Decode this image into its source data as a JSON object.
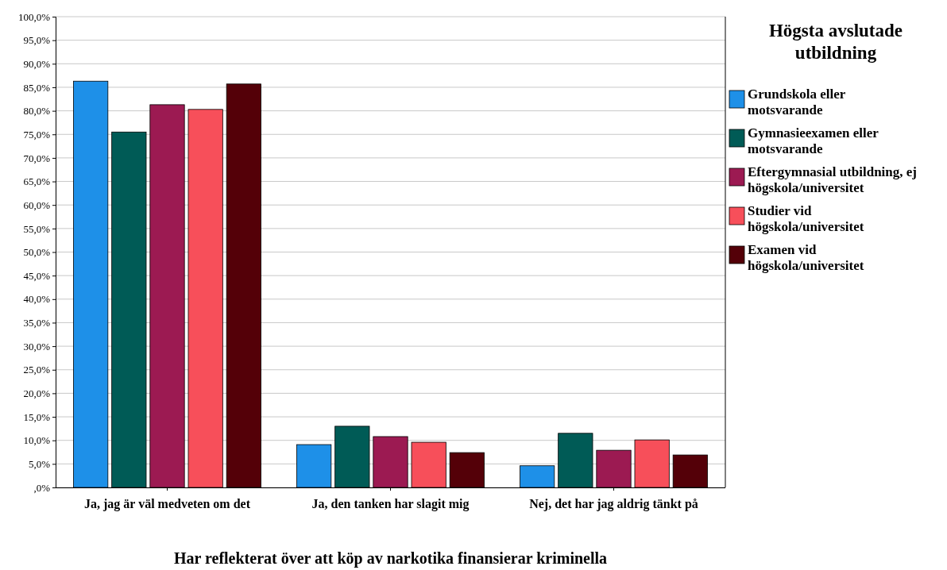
{
  "chart_data": {
    "type": "bar",
    "xlabel": "Har reflekterat över att köp av narkotika finansierar kriminella",
    "legend_title": "Högsta avslutade utbildning",
    "categories": [
      "Ja, jag är väl medveten om det",
      "Ja, den tanken har slagit mig",
      "Nej, det har jag aldrig tänkt på"
    ],
    "series": [
      {
        "name": "Grundskola eller motsvarande",
        "color": "#1e90e8",
        "values": [
          86.3,
          9.1,
          4.6
        ]
      },
      {
        "name": "Gymnasieexamen eller motsvarande",
        "color": "#005b56",
        "values": [
          75.5,
          13.0,
          11.5
        ]
      },
      {
        "name": "Eftergymnasial utbildning, ej högskola/universitet",
        "color": "#9c1a52",
        "values": [
          81.3,
          10.8,
          7.9
        ]
      },
      {
        "name": "Studier vid högskola/universitet",
        "color": "#f74f5a",
        "values": [
          80.3,
          9.6,
          10.1
        ]
      },
      {
        "name": "Examen vid högskola/universitet",
        "color": "#540008",
        "values": [
          85.7,
          7.4,
          6.9
        ]
      }
    ],
    "ylim": [
      0,
      100
    ],
    "yticks": [
      {
        "value": 0,
        "label": ",0%"
      },
      {
        "value": 5,
        "label": "5,0%"
      },
      {
        "value": 10,
        "label": "10,0%"
      },
      {
        "value": 15,
        "label": "15,0%"
      },
      {
        "value": 20,
        "label": "20,0%"
      },
      {
        "value": 25,
        "label": "25,0%"
      },
      {
        "value": 30,
        "label": "30,0%"
      },
      {
        "value": 35,
        "label": "35,0%"
      },
      {
        "value": 40,
        "label": "40,0%"
      },
      {
        "value": 45,
        "label": "45,0%"
      },
      {
        "value": 50,
        "label": "50,0%"
      },
      {
        "value": 55,
        "label": "55,0%"
      },
      {
        "value": 60,
        "label": "60,0%"
      },
      {
        "value": 65,
        "label": "65,0%"
      },
      {
        "value": 70,
        "label": "70,0%"
      },
      {
        "value": 75,
        "label": "75,0%"
      },
      {
        "value": 80,
        "label": "80,0%"
      },
      {
        "value": 85,
        "label": "85,0%"
      },
      {
        "value": 90,
        "label": "90,0%"
      },
      {
        "value": 95,
        "label": "95,0%"
      },
      {
        "value": 100,
        "label": "100,0%"
      }
    ],
    "grid": "y",
    "legend": "right"
  }
}
